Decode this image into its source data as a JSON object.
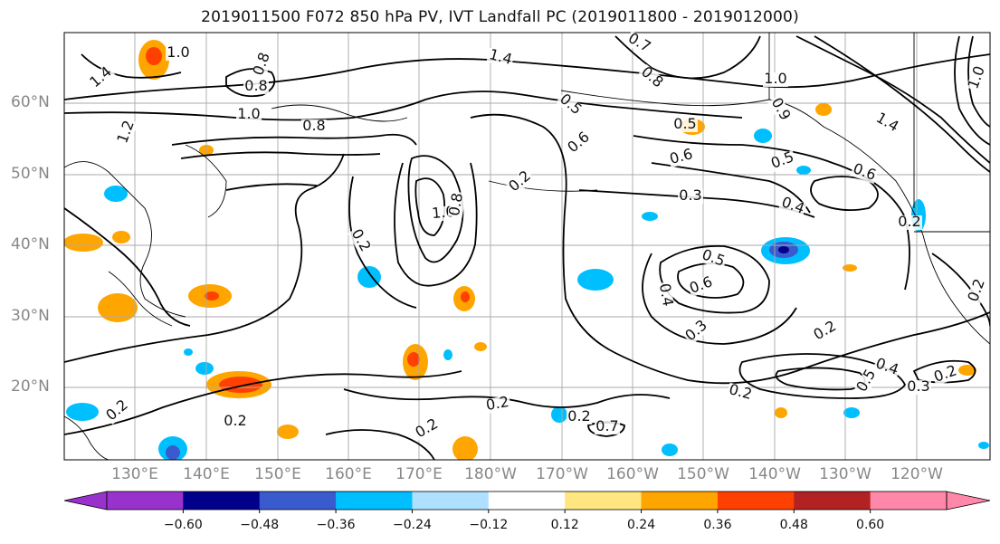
{
  "title": "2019011500 F072 850 hPa PV, IVT Landfall PC (2019011800 - 2019012000)",
  "lat_labels": [
    "60°N",
    "50°N",
    "40°N",
    "30°N",
    "20°N"
  ],
  "lon_labels": [
    "130°E",
    "140°E",
    "150°E",
    "160°E",
    "170°E",
    "180°W",
    "170°W",
    "160°W",
    "150°W",
    "140°W",
    "130°W",
    "120°W"
  ],
  "contour_labels": [
    "1.0",
    "1.4",
    "0.8",
    "1.2",
    "0.8",
    "1.0",
    "0.8",
    "1.4",
    "0.7",
    "0.8",
    "0.5",
    "0.5",
    "0.6",
    "1.0",
    "0.9",
    "1.4",
    "1.0",
    "0.5",
    "0.4",
    "0.3",
    "0.2",
    "0.6",
    "0.6",
    "1.0",
    "0.8",
    "0.2",
    "0.2",
    "0.5",
    "0.6",
    "0.4",
    "0.3",
    "0.2",
    "0.2",
    "0.4",
    "0.5",
    "0.3",
    "0.2",
    "0.2",
    "0.2",
    "0.2",
    "0.7",
    "0.2",
    "0.2",
    "0.2"
  ],
  "colorbar": {
    "colors": [
      "#9932cc",
      "#00008b",
      "#3a5bcd",
      "#00bfff",
      "#b0e0ff",
      "#ffffff",
      "#ffe680",
      "#ffa500",
      "#ff4000",
      "#b22222",
      "#ff88aa"
    ],
    "tick_labels": [
      "−0.60",
      "−0.48",
      "−0.36",
      "−0.24",
      "−0.12",
      "0.12",
      "0.24",
      "0.36",
      "0.48",
      "0.60"
    ]
  },
  "colors": {
    "contour": "#000000",
    "grid": "#aaaaaa",
    "coast": "#000000"
  }
}
